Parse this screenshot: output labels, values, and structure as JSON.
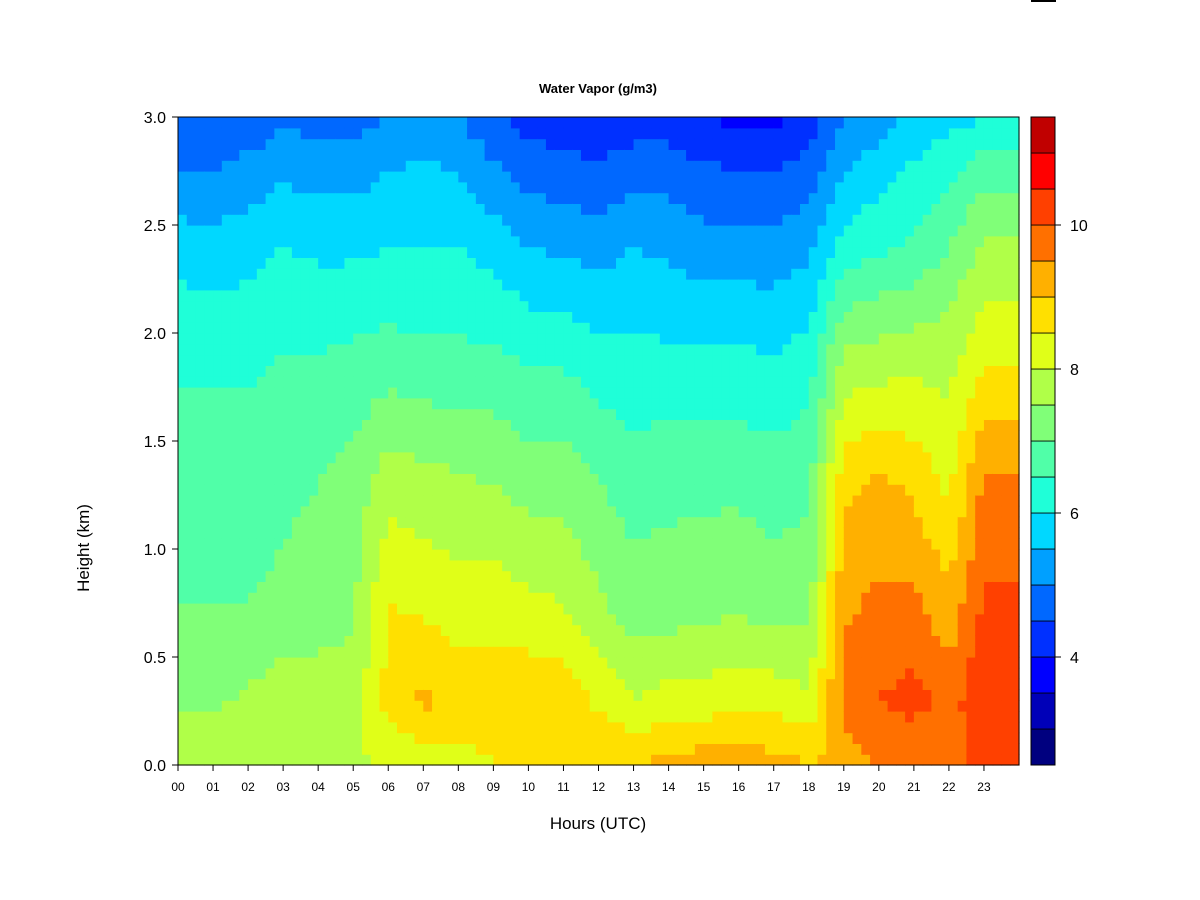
{
  "chart_data": {
    "type": "heatmap",
    "title": "Water Vapor (g/m3)",
    "xlabel": "Hours (UTC)",
    "ylabel": "Height (km)",
    "xlim": [
      0,
      24
    ],
    "ylim": [
      0,
      3
    ],
    "x_ticks": [
      "00",
      "01",
      "02",
      "03",
      "04",
      "05",
      "06",
      "07",
      "08",
      "09",
      "10",
      "11",
      "12",
      "13",
      "14",
      "15",
      "16",
      "17",
      "18",
      "19",
      "20",
      "21",
      "22",
      "23"
    ],
    "y_ticks": [
      "0.0",
      "0.5",
      "1.0",
      "1.5",
      "2.0",
      "2.5",
      "3.0"
    ],
    "colorbar": {
      "range": [
        2.5,
        11.5
      ],
      "ticks": [
        "4",
        "6",
        "8",
        "10"
      ],
      "tick_values": [
        4,
        6,
        8,
        10
      ],
      "bins": [
        2.5,
        3.0,
        3.5,
        4.0,
        4.5,
        5.0,
        5.5,
        6.0,
        6.5,
        7.0,
        7.5,
        8.0,
        8.5,
        9.0,
        9.5,
        10.0,
        10.5,
        11.0,
        11.5
      ],
      "colors": [
        "#00007f",
        "#0000b8",
        "#0000ff",
        "#0030ff",
        "#0068ff",
        "#00a0ff",
        "#00d8ff",
        "#1fffd8",
        "#50ffa8",
        "#80ff78",
        "#b0ff48",
        "#e0ff18",
        "#ffe000",
        "#ffb000",
        "#ff7000",
        "#ff4000",
        "#ff0000",
        "#c00000",
        "#7f0000"
      ]
    },
    "profile_heights_km": [
      0.0,
      0.3,
      0.75,
      1.3,
      1.9,
      2.4,
      2.75,
      3.0
    ],
    "hourly_profiles": [
      {
        "hour": 0,
        "values": [
          7.8,
          7.4,
          7.0,
          6.8,
          6.4,
          5.8,
          5.0,
          4.5
        ]
      },
      {
        "hour": 1,
        "values": [
          7.8,
          7.4,
          7.0,
          6.8,
          6.4,
          5.7,
          5.0,
          4.6
        ]
      },
      {
        "hour": 2,
        "values": [
          7.8,
          7.6,
          7.0,
          6.8,
          6.4,
          5.8,
          5.2,
          4.6
        ]
      },
      {
        "hour": 3,
        "values": [
          7.8,
          7.8,
          7.1,
          6.9,
          6.5,
          6.0,
          5.4,
          4.9
        ]
      },
      {
        "hour": 4,
        "values": [
          7.8,
          7.8,
          7.2,
          7.0,
          6.5,
          5.9,
          5.3,
          4.8
        ]
      },
      {
        "hour": 5,
        "values": [
          7.9,
          7.7,
          7.4,
          7.2,
          6.6,
          5.9,
          5.3,
          4.8
        ]
      },
      {
        "hour": 6,
        "values": [
          8.1,
          8.7,
          8.5,
          7.8,
          6.7,
          6.0,
          5.5,
          5.0
        ]
      },
      {
        "hour": 7,
        "values": [
          8.2,
          9.1,
          8.4,
          7.7,
          6.6,
          6.0,
          5.6,
          5.1
        ]
      },
      {
        "hour": 8,
        "values": [
          8.2,
          8.9,
          8.2,
          7.6,
          6.6,
          6.0,
          5.5,
          5.0
        ]
      },
      {
        "hour": 9,
        "values": [
          8.5,
          8.8,
          8.3,
          7.5,
          6.6,
          5.8,
          5.1,
          4.6
        ]
      },
      {
        "hour": 10,
        "values": [
          8.7,
          8.9,
          8.1,
          7.3,
          6.4,
          5.5,
          4.8,
          4.3
        ]
      },
      {
        "hour": 11,
        "values": [
          9.0,
          8.8,
          8.0,
          7.3,
          6.4,
          5.4,
          4.7,
          4.2
        ]
      },
      {
        "hour": 12,
        "values": [
          9.0,
          8.4,
          7.6,
          7.0,
          6.2,
          5.3,
          4.6,
          4.1
        ]
      },
      {
        "hour": 13,
        "values": [
          9.0,
          8.0,
          7.2,
          6.8,
          6.1,
          5.5,
          4.8,
          4.2
        ]
      },
      {
        "hour": 14,
        "values": [
          9.2,
          8.2,
          7.2,
          6.9,
          6.1,
          5.4,
          4.8,
          4.2
        ]
      },
      {
        "hour": 15,
        "values": [
          9.3,
          8.2,
          7.3,
          6.9,
          6.1,
          5.2,
          4.6,
          4.0
        ]
      },
      {
        "hour": 16,
        "values": [
          9.3,
          8.4,
          7.4,
          6.9,
          6.1,
          5.2,
          4.5,
          3.9
        ]
      },
      {
        "hour": 17,
        "values": [
          9.2,
          8.3,
          7.2,
          6.8,
          6.0,
          5.2,
          4.5,
          3.8
        ]
      },
      {
        "hour": 18,
        "values": [
          9.0,
          8.1,
          7.3,
          6.9,
          6.2,
          5.4,
          4.7,
          4.2
        ]
      },
      {
        "hour": 19,
        "values": [
          9.2,
          9.7,
          9.4,
          8.9,
          7.6,
          6.2,
          5.5,
          5.0
        ]
      },
      {
        "hour": 20,
        "values": [
          9.5,
          10.0,
          9.6,
          9.1,
          7.7,
          6.4,
          5.8,
          5.2
        ]
      },
      {
        "hour": 21,
        "values": [
          9.5,
          10.2,
          9.6,
          8.9,
          7.8,
          6.6,
          6.1,
          5.6
        ]
      },
      {
        "hour": 22,
        "values": [
          9.5,
          9.8,
          9.1,
          8.4,
          7.8,
          7.0,
          6.4,
          5.8
        ]
      },
      {
        "hour": 23,
        "values": [
          10.3,
          10.4,
          10.1,
          9.6,
          8.4,
          7.6,
          6.8,
          6.0
        ]
      },
      {
        "hour": 24,
        "values": [
          10.3,
          10.4,
          10.1,
          9.6,
          8.4,
          7.6,
          6.8,
          6.0
        ]
      }
    ]
  }
}
